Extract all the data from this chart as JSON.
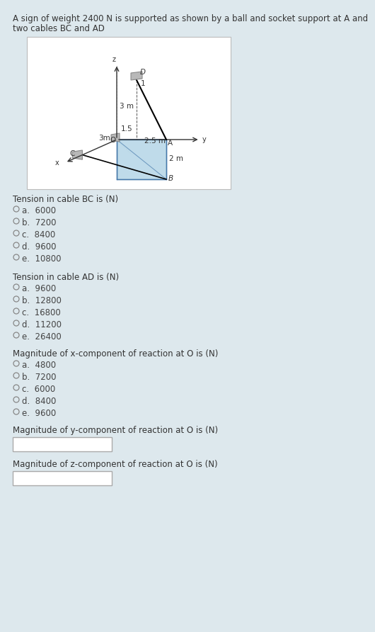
{
  "bg_color": "#dde8ed",
  "diagram_bg": "#ffffff",
  "title_line1": "A sign of weight 2400 N is supported as shown by a ball and socket support at A and",
  "title_line2": "two cables BC and AD",
  "title_fontsize": 8.5,
  "q1_label": "Tension in cable BC is (N)",
  "q1_options": [
    "a.  6000",
    "b.  7200",
    "c.  8400",
    "d.  9600",
    "e.  10800"
  ],
  "q2_label": "Tension in cable AD is (N)",
  "q2_options": [
    "a.  9600",
    "b.  12800",
    "c.  16800",
    "d.  11200",
    "e.  26400"
  ],
  "q3_label": "Magnitude of x-component of reaction at O is (N)",
  "q3_options": [
    "a.  4800",
    "b.  7200",
    "c.  6000",
    "d.  8400",
    "e.  9600"
  ],
  "q4_label": "Magnitude of y-component of reaction at O is (N)",
  "q5_label": "Magnitude of z-component of reaction at O is (N)",
  "option_fontsize": 8.5,
  "label_fontsize": 8.5,
  "radio_color": "#888888",
  "text_color": "#444444",
  "label_color": "#333333"
}
